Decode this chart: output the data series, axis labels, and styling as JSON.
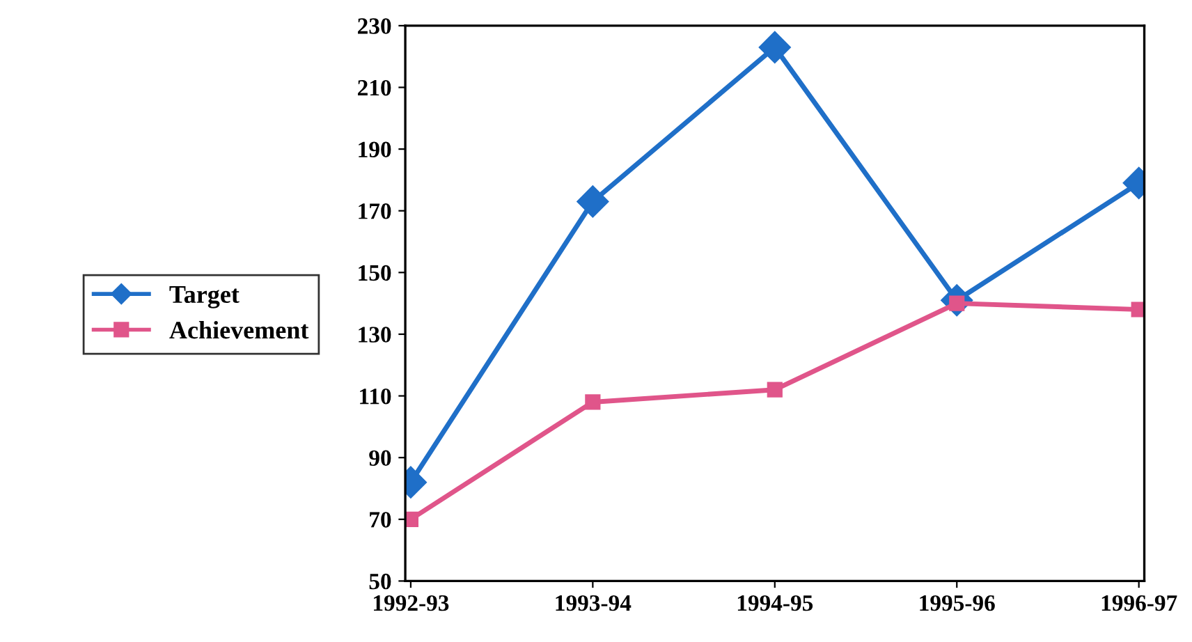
{
  "chart_data": {
    "type": "line",
    "categories": [
      "1992-93",
      "1993-94",
      "1994-95",
      "1995-96",
      "1996-97"
    ],
    "series": [
      {
        "name": "Target",
        "color": "#1f6fc8",
        "marker": "diamond",
        "values": [
          82,
          173,
          223,
          141,
          179
        ]
      },
      {
        "name": "Achievement",
        "color": "#e0558a",
        "marker": "square",
        "values": [
          70,
          108,
          112,
          140,
          138
        ]
      }
    ],
    "ylim": [
      50,
      230
    ],
    "yticks": [
      50,
      70,
      90,
      110,
      130,
      150,
      170,
      190,
      210,
      230
    ],
    "grid": false,
    "legend": "left",
    "line_style": "solid"
  }
}
